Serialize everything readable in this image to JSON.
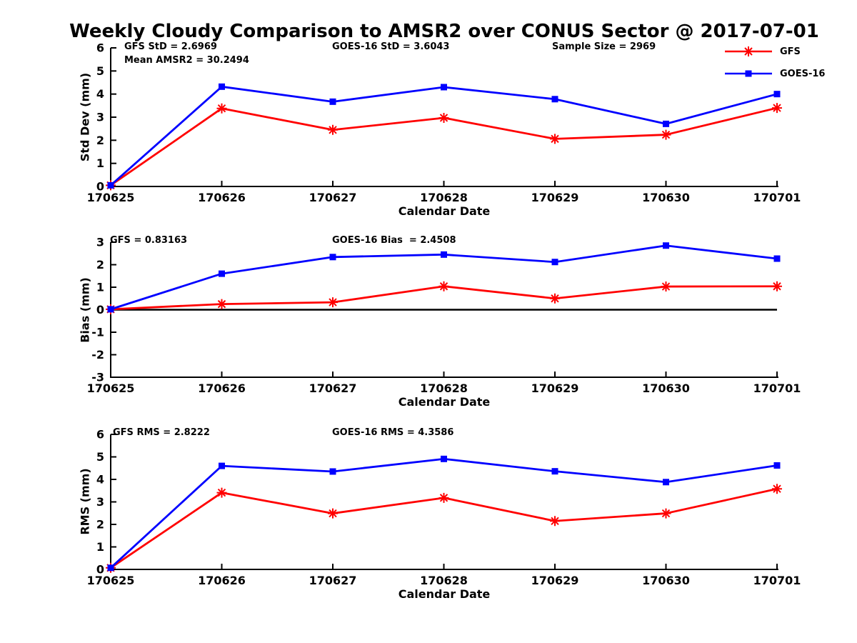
{
  "title": "Weekly Cloudy Comparison to AMSR2 over CONUS Sector @ 2017-07-01",
  "legend": {
    "items": [
      {
        "label": "GFS",
        "color": "#ff0000",
        "marker": "asterisk"
      },
      {
        "label": "GOES-16",
        "color": "#0000ff",
        "marker": "square"
      }
    ]
  },
  "chart_data": [
    {
      "type": "line",
      "ylabel": "Std Dev (mm)",
      "xlabel": "Calendar Date",
      "ylim": [
        0,
        6
      ],
      "yticks": [
        0,
        1,
        2,
        3,
        4,
        5,
        6
      ],
      "grid": false,
      "legend_position": "top-right-outside",
      "categories": [
        "170625",
        "170626",
        "170627",
        "170628",
        "170629",
        "170630",
        "170701"
      ],
      "annotations": [
        "GFS StD = 2.6969",
        "Mean AMSR2 = 30.2494",
        "GOES-16 StD = 3.6043",
        "Sample Size = 2969"
      ],
      "series": [
        {
          "name": "GFS",
          "color": "#ff0000",
          "marker": "asterisk",
          "values": [
            0.05,
            3.38,
            2.45,
            2.97,
            2.06,
            2.24,
            3.4
          ]
        },
        {
          "name": "GOES-16",
          "color": "#0000ff",
          "marker": "square",
          "values": [
            0.05,
            4.32,
            3.67,
            4.3,
            3.78,
            2.71,
            4.0
          ]
        }
      ]
    },
    {
      "type": "line",
      "ylabel": "Bias (mm)",
      "xlabel": "Calendar Date",
      "ylim": [
        -3,
        3
      ],
      "yticks": [
        -3,
        -2,
        -1,
        0,
        1,
        2,
        3
      ],
      "grid": false,
      "zero_line": true,
      "categories": [
        "170625",
        "170626",
        "170627",
        "170628",
        "170629",
        "170630",
        "170701"
      ],
      "annotations": [
        "GFS = 0.83163",
        "GOES-16 Bias  = 2.4508"
      ],
      "series": [
        {
          "name": "GFS",
          "color": "#ff0000",
          "marker": "asterisk",
          "values": [
            0.02,
            0.25,
            0.33,
            1.04,
            0.5,
            1.03,
            1.04
          ]
        },
        {
          "name": "GOES-16",
          "color": "#0000ff",
          "marker": "square",
          "values": [
            0.02,
            1.6,
            2.34,
            2.45,
            2.12,
            2.85,
            2.27
          ]
        }
      ]
    },
    {
      "type": "line",
      "ylabel": "RMS (mm)",
      "xlabel": "Calendar Date",
      "ylim": [
        0,
        6
      ],
      "yticks": [
        0,
        1,
        2,
        3,
        4,
        5,
        6
      ],
      "grid": false,
      "categories": [
        "170625",
        "170626",
        "170627",
        "170628",
        "170629",
        "170630",
        "170701"
      ],
      "annotations": [
        "GFS RMS = 2.8222",
        "GOES-16 RMS = 4.3586"
      ],
      "series": [
        {
          "name": "GFS",
          "color": "#ff0000",
          "marker": "asterisk",
          "values": [
            0.07,
            3.41,
            2.49,
            3.18,
            2.15,
            2.49,
            3.58
          ]
        },
        {
          "name": "GOES-16",
          "color": "#0000ff",
          "marker": "square",
          "values": [
            0.07,
            4.6,
            4.35,
            4.91,
            4.36,
            3.88,
            4.62
          ]
        }
      ]
    }
  ]
}
